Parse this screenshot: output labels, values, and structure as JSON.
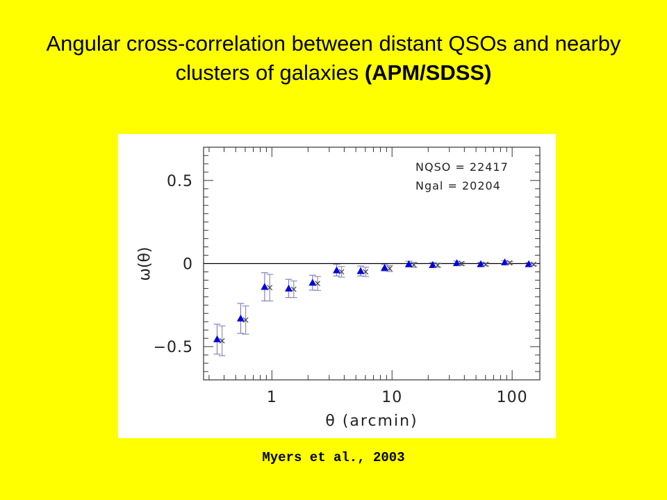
{
  "slide": {
    "title_main": "Angular cross-correlation between distant QSOs and nearby clusters of galaxies ",
    "title_bold": "(APM/SDSS)",
    "citation": "Myers et al., 2003",
    "background": "#ffff00"
  },
  "chart_data": {
    "type": "scatter",
    "title": "",
    "xlabel": "θ (arcmin)",
    "ylabel": "ω(θ)",
    "x_scale": "log",
    "xlim": [
      0.27,
      170
    ],
    "ylim": [
      -0.7,
      0.7
    ],
    "x_ticks": [
      1,
      10,
      100
    ],
    "x_tick_labels": [
      "1",
      "10",
      "100"
    ],
    "y_ticks": [
      -0.5,
      0,
      0.5
    ],
    "y_tick_labels": [
      "−0.5",
      "0",
      "0.5"
    ],
    "zero_line": true,
    "annotations": [
      "NQSO = 22417",
      "Ngal = 20204"
    ],
    "series": [
      {
        "marker": "triangle",
        "color": "#0000dd",
        "x": [
          0.35,
          0.55,
          0.87,
          1.38,
          2.18,
          3.46,
          5.48,
          8.68,
          13.8,
          21.8,
          34.6,
          54.8,
          86.8,
          137.5
        ],
        "y": [
          -0.455,
          -0.33,
          -0.14,
          -0.15,
          -0.115,
          -0.04,
          -0.045,
          -0.025,
          -0.003,
          -0.008,
          0.003,
          -0.003,
          0.008,
          -0.003
        ],
        "err": [
          0.09,
          0.09,
          0.085,
          0.055,
          0.045,
          0.035,
          0.03,
          0.02,
          0.017,
          0.014,
          0.012,
          0.01,
          0.009,
          0.008
        ]
      },
      {
        "marker": "cross",
        "color": "#444444",
        "x": [
          0.385,
          0.605,
          0.96,
          1.52,
          2.4,
          3.8,
          6.03,
          9.55,
          15.2,
          24.0,
          38.0,
          60.3,
          95.5,
          151
        ],
        "y": [
          -0.465,
          -0.34,
          -0.145,
          -0.155,
          -0.12,
          -0.05,
          -0.05,
          -0.03,
          -0.008,
          -0.01,
          -0.001,
          -0.005,
          0.004,
          -0.005
        ],
        "err": [
          0.09,
          0.085,
          0.08,
          0.05,
          0.042,
          0.032,
          0.028,
          0.018,
          0.015,
          0.012,
          0.01,
          0.009,
          0.008,
          0.007
        ]
      }
    ]
  }
}
